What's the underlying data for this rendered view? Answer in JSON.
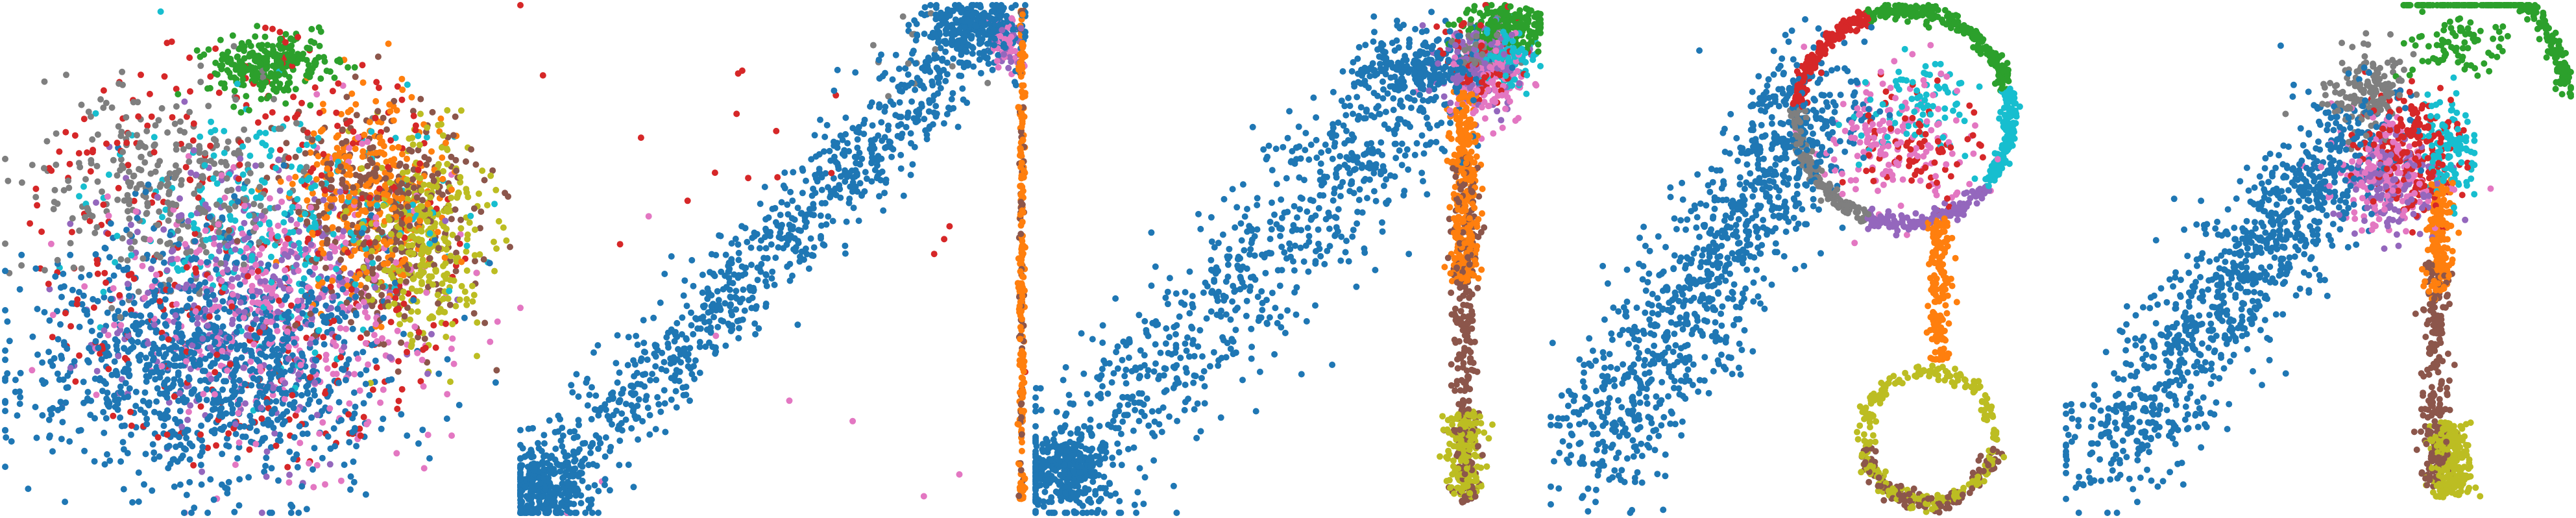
{
  "palette": {
    "blue": "#1f77b4",
    "orange": "#ff7f0e",
    "green": "#2ca02c",
    "red": "#d62728",
    "purple": "#9467bd",
    "brown": "#8c564b",
    "pink": "#e377c2",
    "gray": "#7f7f7f",
    "olive": "#bcbd22",
    "cyan": "#17becf"
  },
  "chart_data": [
    {
      "type": "scatter",
      "title": "",
      "xlabel": "",
      "ylabel": "",
      "axes": "off",
      "grid": false,
      "legend": "none",
      "xlim": [
        0,
        100
      ],
      "ylim": [
        0,
        100
      ],
      "clusters": [
        {
          "color": "blue",
          "n": 1100,
          "shape": "blob",
          "cx": 40,
          "cy": 30,
          "sx": 18,
          "sy": 12
        },
        {
          "color": "green",
          "n": 260,
          "shape": "blob",
          "cx": 52,
          "cy": 88,
          "sx": 6,
          "sy": 3
        },
        {
          "color": "red",
          "n": 380,
          "shape": "disc",
          "cx": 48,
          "cy": 52,
          "r": 44
        },
        {
          "color": "gray",
          "n": 320,
          "shape": "blob",
          "cx": 32,
          "cy": 65,
          "sx": 14,
          "sy": 10
        },
        {
          "color": "pink",
          "n": 380,
          "shape": "blob",
          "cx": 55,
          "cy": 40,
          "sx": 16,
          "sy": 14
        },
        {
          "color": "purple",
          "n": 320,
          "shape": "blob",
          "cx": 48,
          "cy": 42,
          "sx": 14,
          "sy": 13
        },
        {
          "color": "cyan",
          "n": 260,
          "shape": "blob",
          "cx": 55,
          "cy": 58,
          "sx": 16,
          "sy": 12
        },
        {
          "color": "orange",
          "n": 300,
          "shape": "blob",
          "cx": 72,
          "cy": 63,
          "sx": 7,
          "sy": 9
        },
        {
          "color": "brown",
          "n": 360,
          "shape": "blob",
          "cx": 74,
          "cy": 58,
          "sx": 10,
          "sy": 12
        },
        {
          "color": "olive",
          "n": 330,
          "shape": "blob",
          "cx": 83,
          "cy": 55,
          "sx": 6,
          "sy": 10
        }
      ]
    },
    {
      "type": "scatter",
      "title": "",
      "xlabel": "",
      "ylabel": "",
      "axes": "off",
      "grid": false,
      "legend": "none",
      "xlim": [
        0,
        100
      ],
      "ylim": [
        0,
        100
      ],
      "clusters": [
        {
          "color": "blue",
          "n": 900,
          "shape": "diag",
          "x0": 2,
          "y0": 2,
          "x1": 93,
          "y1": 97,
          "spread": 9
        },
        {
          "color": "blue",
          "n": 260,
          "shape": "blob",
          "cx": 5,
          "cy": 5,
          "sx": 4,
          "sy": 4
        },
        {
          "color": "blue",
          "n": 220,
          "shape": "blob",
          "cx": 90,
          "cy": 96,
          "sx": 5,
          "sy": 2.5
        },
        {
          "color": "pink",
          "n": 40,
          "shape": "blob",
          "cx": 96,
          "cy": 93,
          "sx": 2,
          "sy": 3
        },
        {
          "color": "purple",
          "n": 25,
          "shape": "blob",
          "cx": 97,
          "cy": 92,
          "sx": 1.5,
          "sy": 2
        },
        {
          "color": "red",
          "n": 18,
          "shape": "blob",
          "cx": 45,
          "cy": 70,
          "sx": 35,
          "sy": 25
        },
        {
          "color": "orange",
          "n": 220,
          "shape": "vline",
          "x": 99.3,
          "y0": 2,
          "y1": 99,
          "spread": 0.3
        },
        {
          "color": "brown",
          "n": 60,
          "shape": "vline",
          "x": 99.3,
          "y0": 2,
          "y1": 99,
          "spread": 0.3
        },
        {
          "color": "gray",
          "n": 14,
          "shape": "blob",
          "cx": 80,
          "cy": 90,
          "sx": 8,
          "sy": 5
        },
        {
          "color": "pink",
          "n": 10,
          "shape": "blob",
          "cx": 40,
          "cy": 20,
          "sx": 25,
          "sy": 20
        }
      ]
    },
    {
      "type": "scatter",
      "title": "",
      "xlabel": "",
      "ylabel": "",
      "axes": "off",
      "grid": false,
      "legend": "none",
      "xlim": [
        0,
        100
      ],
      "ylim": [
        0,
        100
      ],
      "clusters": [
        {
          "color": "blue",
          "n": 800,
          "shape": "diag",
          "x0": 3,
          "y0": 5,
          "x1": 80,
          "y1": 88,
          "spread": 14
        },
        {
          "color": "blue",
          "n": 300,
          "shape": "blob",
          "cx": 6,
          "cy": 9,
          "sx": 4,
          "sy": 4
        },
        {
          "color": "blue",
          "n": 200,
          "shape": "blob",
          "cx": 75,
          "cy": 88,
          "sx": 6,
          "sy": 3
        },
        {
          "color": "green",
          "n": 200,
          "shape": "blob",
          "cx": 93,
          "cy": 96,
          "sx": 4,
          "sy": 2
        },
        {
          "color": "purple",
          "n": 150,
          "shape": "blob",
          "cx": 88,
          "cy": 88,
          "sx": 4,
          "sy": 4
        },
        {
          "color": "pink",
          "n": 140,
          "shape": "blob",
          "cx": 90,
          "cy": 86,
          "sx": 4,
          "sy": 4
        },
        {
          "color": "cyan",
          "n": 90,
          "shape": "blob",
          "cx": 93,
          "cy": 90,
          "sx": 3,
          "sy": 3
        },
        {
          "color": "gray",
          "n": 60,
          "shape": "blob",
          "cx": 89,
          "cy": 91,
          "sx": 3,
          "sy": 3
        },
        {
          "color": "red",
          "n": 80,
          "shape": "blob",
          "cx": 89,
          "cy": 89,
          "sx": 4,
          "sy": 4
        },
        {
          "color": "orange",
          "n": 300,
          "shape": "vline",
          "x": 85,
          "y0": 45,
          "y1": 83,
          "spread": 1.5
        },
        {
          "color": "brown",
          "n": 280,
          "shape": "vline",
          "x": 85,
          "y0": 2,
          "y1": 70,
          "spread": 1.4
        },
        {
          "color": "olive",
          "n": 200,
          "shape": "vline",
          "x": 85,
          "y0": 3,
          "y1": 20,
          "spread": 1.8
        }
      ]
    },
    {
      "type": "scatter",
      "title": "",
      "xlabel": "",
      "ylabel": "",
      "axes": "off",
      "grid": false,
      "legend": "none",
      "xlim": [
        0,
        100
      ],
      "ylim": [
        0,
        100
      ],
      "clusters": [
        {
          "color": "blue",
          "n": 1000,
          "shape": "diag",
          "x0": 8,
          "y0": 10,
          "x1": 55,
          "y1": 85,
          "spread": 13
        },
        {
          "color": "green",
          "n": 220,
          "shape": "ring",
          "cx": 70,
          "cy": 78,
          "r": 21,
          "a0": 15,
          "a1": 110
        },
        {
          "color": "red",
          "n": 160,
          "shape": "ring",
          "cx": 70,
          "cy": 78,
          "r": 21,
          "a0": 110,
          "a1": 175
        },
        {
          "color": "gray",
          "n": 140,
          "shape": "ring",
          "cx": 70,
          "cy": 78,
          "r": 21,
          "a0": 175,
          "a1": 250
        },
        {
          "color": "purple",
          "n": 140,
          "shape": "ring",
          "cx": 70,
          "cy": 78,
          "r": 21,
          "a0": 250,
          "a1": 320
        },
        {
          "color": "cyan",
          "n": 160,
          "shape": "ring",
          "cx": 70,
          "cy": 78,
          "r": 21,
          "a0": 320,
          "a1": 375
        },
        {
          "color": "pink",
          "n": 160,
          "shape": "blob",
          "cx": 68,
          "cy": 74,
          "sx": 8,
          "sy": 7
        },
        {
          "color": "cyan",
          "n": 80,
          "shape": "blob",
          "cx": 74,
          "cy": 80,
          "sx": 6,
          "sy": 5
        },
        {
          "color": "red",
          "n": 80,
          "shape": "blob",
          "cx": 72,
          "cy": 72,
          "sx": 7,
          "sy": 6
        },
        {
          "color": "orange",
          "n": 160,
          "shape": "vline",
          "x": 77,
          "y0": 30,
          "y1": 58,
          "spread": 1.2
        },
        {
          "color": "olive",
          "n": 260,
          "shape": "ring",
          "cx": 75,
          "cy": 15,
          "r": 13,
          "a0": 0,
          "a1": 360
        },
        {
          "color": "brown",
          "n": 140,
          "shape": "ring",
          "cx": 75,
          "cy": 15,
          "r": 13,
          "a0": 190,
          "a1": 350
        }
      ]
    },
    {
      "type": "scatter",
      "title": "",
      "xlabel": "",
      "ylabel": "",
      "axes": "off",
      "grid": false,
      "legend": "none",
      "xlim": [
        0,
        100
      ],
      "ylim": [
        0,
        100
      ],
      "clusters": [
        {
          "color": "blue",
          "n": 1000,
          "shape": "diag",
          "x0": 5,
          "y0": 8,
          "x1": 60,
          "y1": 78,
          "spread": 12
        },
        {
          "color": "green",
          "n": 220,
          "shape": "ring",
          "cx": 75,
          "cy": 82,
          "r": 24,
          "a0": 0,
          "a1": 110
        },
        {
          "color": "green",
          "n": 80,
          "shape": "blob",
          "cx": 78,
          "cy": 92,
          "sx": 5,
          "sy": 3
        },
        {
          "color": "gray",
          "n": 160,
          "shape": "blob",
          "cx": 60,
          "cy": 83,
          "sx": 4,
          "sy": 4
        },
        {
          "color": "red",
          "n": 220,
          "shape": "blob",
          "cx": 68,
          "cy": 72,
          "sx": 5,
          "sy": 6
        },
        {
          "color": "pink",
          "n": 180,
          "shape": "blob",
          "cx": 63,
          "cy": 67,
          "sx": 5,
          "sy": 5
        },
        {
          "color": "purple",
          "n": 140,
          "shape": "blob",
          "cx": 65,
          "cy": 64,
          "sx": 5,
          "sy": 5
        },
        {
          "color": "cyan",
          "n": 120,
          "shape": "blob",
          "cx": 76,
          "cy": 72,
          "sx": 3,
          "sy": 5
        },
        {
          "color": "orange",
          "n": 180,
          "shape": "vline",
          "x": 74,
          "y0": 42,
          "y1": 66,
          "spread": 1.3
        },
        {
          "color": "brown",
          "n": 220,
          "shape": "vline",
          "x": 73,
          "y0": 5,
          "y1": 50,
          "spread": 1.5
        },
        {
          "color": "olive",
          "n": 240,
          "shape": "vline",
          "x": 76,
          "y0": 3,
          "y1": 18,
          "spread": 2
        }
      ]
    }
  ]
}
